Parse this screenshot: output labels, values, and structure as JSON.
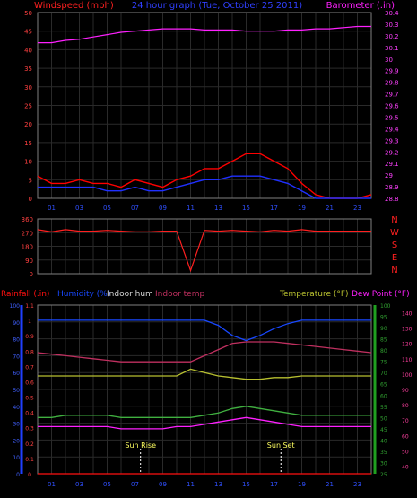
{
  "header": {
    "left": "Windspeed (mph)",
    "center": "24 hour graph (Tue, October 25 2011)",
    "right": "Barometer (.in)"
  },
  "colors": {
    "wind": "#ff2020",
    "gust": "#ff0000",
    "windAvg": "#2030ff",
    "baro": "#ff20ff",
    "dir": "#ff2020",
    "rain": "#ff1010",
    "humidity": "#1848ff",
    "inhum": "#d8d8d8",
    "intemp": "#c03060",
    "temp": "#b8c030",
    "dew": "#ff20ff",
    "sun": "#ffff60",
    "axis": "#808080",
    "grid": "#2a2a2a"
  },
  "chart_data": [
    {
      "type": "line",
      "title": "24 hour graph (Tue, October 25 2011)",
      "ylabel": "Windspeed (mph)",
      "y2label": "Barometer (.in)",
      "ylim": [
        0,
        50
      ],
      "y2lim": [
        28.8,
        30.4
      ],
      "yticks": [
        "0",
        "5",
        "10",
        "15",
        "20",
        "25",
        "30",
        "35",
        "40",
        "45",
        "50"
      ],
      "y2ticks": [
        "28.8",
        "28.9",
        "29",
        "29.1",
        "29.2",
        "29.3",
        "29.4",
        "29.5",
        "29.6",
        "29.7",
        "29.8",
        "29.9",
        "30",
        "30.1",
        "30.2",
        "30.3",
        "30.4"
      ],
      "xticks": [
        "01",
        "03",
        "05",
        "07",
        "09",
        "11",
        "13",
        "15",
        "17",
        "19",
        "21",
        "23"
      ],
      "x": [
        0,
        1,
        2,
        3,
        4,
        5,
        6,
        7,
        8,
        9,
        10,
        11,
        12,
        13,
        14,
        15,
        16,
        17,
        18,
        19,
        20,
        21,
        22,
        23,
        24
      ],
      "series": [
        {
          "key": "gust",
          "values": [
            6,
            4,
            4,
            5,
            4,
            4,
            3,
            5,
            4,
            3,
            5,
            6,
            8,
            8,
            10,
            12,
            12,
            10,
            8,
            4,
            1,
            0,
            0,
            0,
            1
          ]
        },
        {
          "key": "windAvg",
          "values": [
            3,
            3,
            3,
            3,
            3,
            2,
            2,
            3,
            2,
            2,
            3,
            4,
            5,
            5,
            6,
            6,
            6,
            5,
            4,
            2,
            0,
            0,
            0,
            0,
            0
          ]
        },
        {
          "key": "baro",
          "values": [
            30.14,
            30.14,
            30.16,
            30.17,
            30.19,
            30.21,
            30.23,
            30.24,
            30.25,
            30.26,
            30.26,
            30.26,
            30.25,
            30.25,
            30.25,
            30.24,
            30.24,
            30.24,
            30.25,
            30.25,
            30.26,
            30.26,
            30.27,
            30.28,
            30.28
          ]
        }
      ]
    },
    {
      "type": "line",
      "ylabel": "N W S E N",
      "ylim": [
        0,
        360
      ],
      "yticks": [
        "0",
        "90",
        "180",
        "270",
        "360"
      ],
      "rightLetters": [
        "N",
        "W",
        "S",
        "E",
        "N"
      ],
      "x": [
        0,
        1,
        2,
        3,
        4,
        5,
        6,
        7,
        8,
        9,
        10,
        11,
        12,
        13,
        14,
        15,
        16,
        17,
        18,
        19,
        20,
        21,
        22,
        23,
        24
      ],
      "series": [
        {
          "key": "dir",
          "values": [
            290,
            275,
            290,
            280,
            280,
            285,
            280,
            275,
            275,
            280,
            280,
            20,
            285,
            280,
            285,
            280,
            275,
            285,
            280,
            290,
            280,
            280,
            280,
            280,
            280
          ]
        }
      ]
    },
    {
      "type": "line",
      "legend": [
        "Rainfall (.in)",
        "Humidity (%)",
        "Indoor hum",
        "Indoor temp",
        "Temperature (°F)",
        "Dew Point (°F)"
      ],
      "ylim": [
        0,
        100
      ],
      "yticks": [
        "0",
        "10",
        "20",
        "30",
        "40",
        "50",
        "60",
        "70",
        "80",
        "90",
        "100"
      ],
      "rainticks": [
        "0",
        "0.1",
        "0.2",
        "0.3",
        "0.4",
        "0.5",
        "0.6",
        "0.7",
        "0.8",
        "0.9",
        "1",
        "1.1"
      ],
      "y2lim": [
        25,
        100
      ],
      "tempticks": [
        "25",
        "30",
        "35",
        "40",
        "45",
        "50",
        "55",
        "60",
        "65",
        "70",
        "75",
        "80",
        "85",
        "90",
        "95",
        "100"
      ],
      "y3lim": [
        35,
        145
      ],
      "rightticks": [
        "40",
        "50",
        "60",
        "70",
        "80",
        "90",
        "100",
        "110",
        "120",
        "130",
        "140"
      ],
      "x": [
        0,
        1,
        2,
        3,
        4,
        5,
        6,
        7,
        8,
        9,
        10,
        11,
        12,
        13,
        14,
        15,
        16,
        17,
        18,
        19,
        20,
        21,
        22,
        23,
        24
      ],
      "series": [
        {
          "key": "humidity",
          "values": [
            91,
            91,
            91,
            91,
            91,
            91,
            91,
            91,
            91,
            91,
            91,
            91,
            91,
            88,
            82,
            79,
            82,
            86,
            89,
            91,
            91,
            91,
            91,
            91,
            91
          ]
        },
        {
          "key": "intemp",
          "values": [
            114,
            113,
            112,
            111,
            110,
            109,
            108,
            108,
            108,
            108,
            108,
            108,
            112,
            116,
            120,
            121,
            121,
            121,
            120,
            119,
            118,
            117,
            116,
            115,
            114
          ]
        },
        {
          "key": "inhum",
          "values": [
            58,
            58,
            58,
            58,
            58,
            58,
            58,
            58,
            58,
            58,
            58,
            62,
            60,
            58,
            57,
            56,
            56,
            57,
            57,
            58,
            58,
            58,
            58,
            58,
            58
          ]
        },
        {
          "key": "temp",
          "values": [
            50,
            50,
            51,
            51,
            51,
            51,
            50,
            50,
            50,
            50,
            50,
            50,
            51,
            52,
            54,
            55,
            54,
            53,
            52,
            51,
            51,
            51,
            51,
            51,
            51
          ]
        },
        {
          "key": "dew",
          "values": [
            46,
            46,
            46,
            46,
            46,
            46,
            45,
            45,
            45,
            45,
            46,
            46,
            47,
            48,
            49,
            50,
            49,
            48,
            47,
            46,
            46,
            46,
            46,
            46,
            46
          ]
        },
        {
          "key": "rain",
          "values": [
            0,
            0,
            0,
            0,
            0,
            0,
            0,
            0,
            0,
            0,
            0,
            0,
            0,
            0,
            0,
            0,
            0,
            0,
            0,
            0,
            0,
            0,
            0,
            0,
            0
          ]
        }
      ],
      "sunrise": {
        "label": "Sun Rise",
        "hour": 7.4
      },
      "sunset": {
        "label": "Sun Set",
        "hour": 17.5
      }
    }
  ]
}
